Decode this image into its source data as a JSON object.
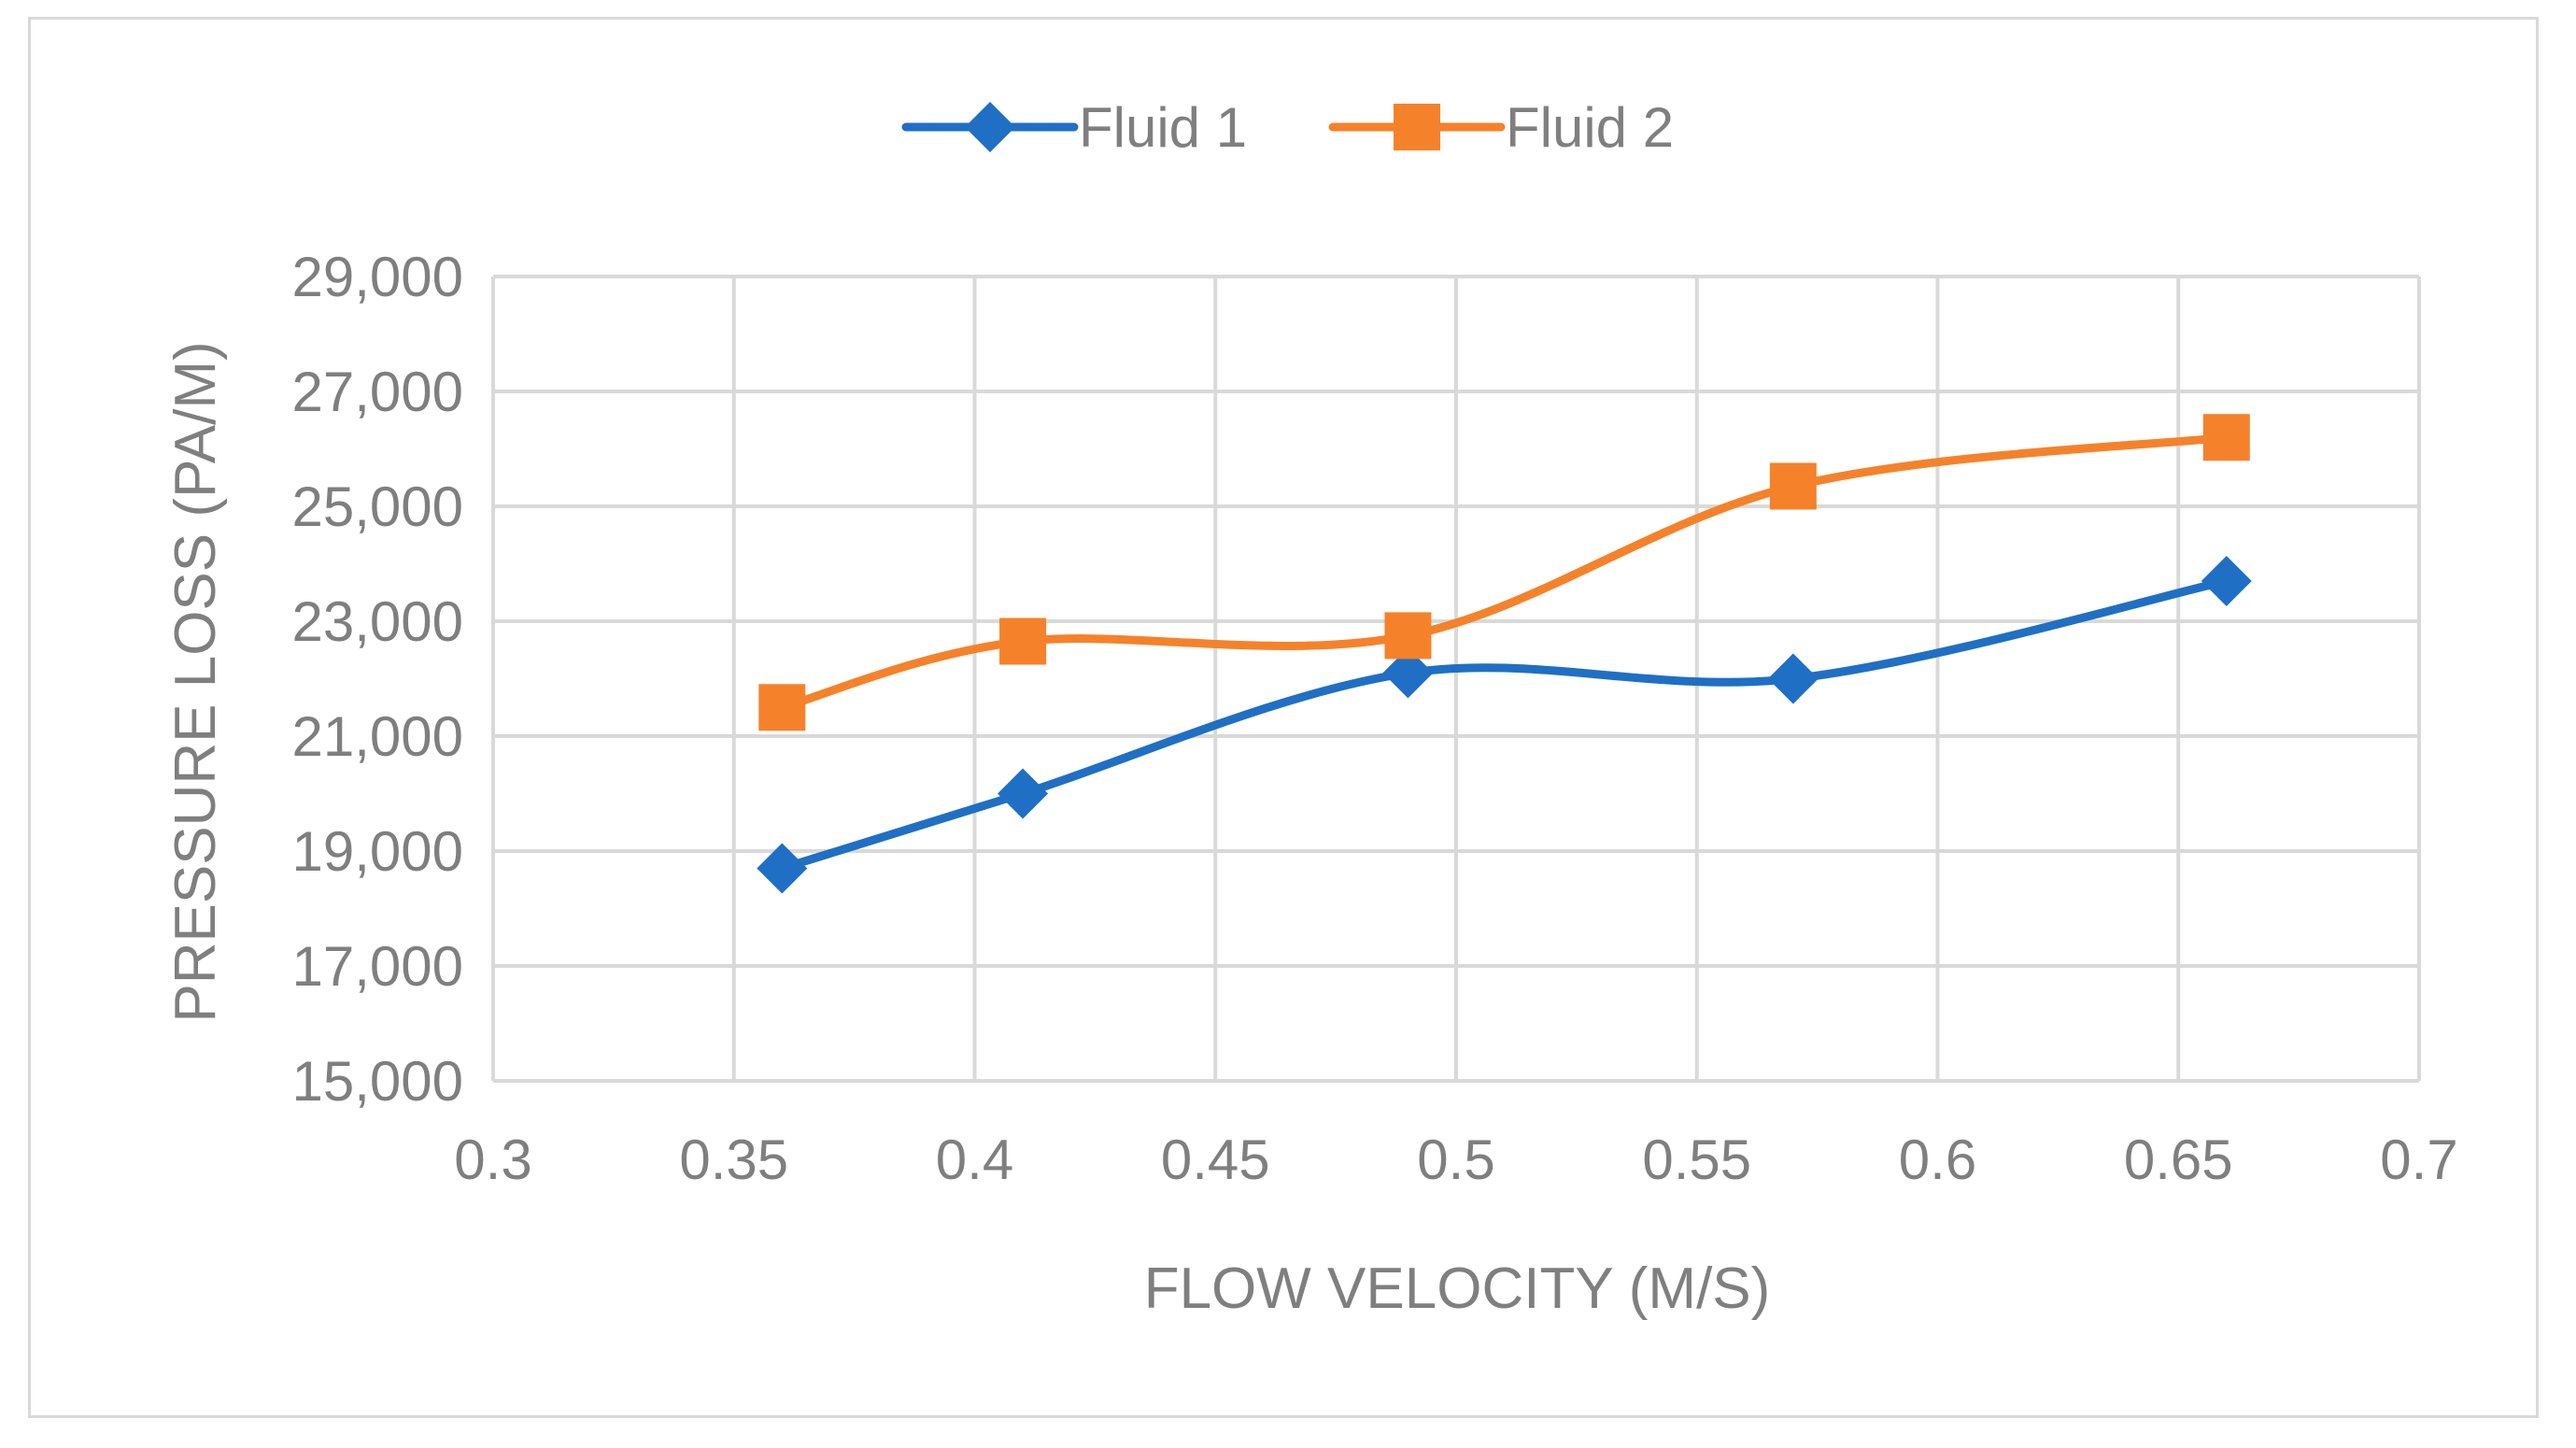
{
  "chart_data": {
    "type": "line",
    "smooth": true,
    "title": "",
    "xlabel": "FLOW VELOCITY (M/S)",
    "ylabel": "PRESSURE LOSS (PA/M)",
    "xlim": [
      0.3,
      0.7
    ],
    "ylim": [
      15000,
      29000
    ],
    "x_ticks": [
      "0.3",
      "0.35",
      "0.4",
      "0.45",
      "0.5",
      "0.55",
      "0.6",
      "0.65",
      "0.7"
    ],
    "x_tick_values": [
      0.3,
      0.35,
      0.4,
      0.45,
      0.5,
      0.55,
      0.6,
      0.65,
      0.7
    ],
    "y_ticks": [
      "15,000",
      "17,000",
      "19,000",
      "21,000",
      "23,000",
      "25,000",
      "27,000",
      "29,000"
    ],
    "y_tick_values": [
      15000,
      17000,
      19000,
      21000,
      23000,
      25000,
      27000,
      29000
    ],
    "grid": true,
    "legend_position": "top-center",
    "series": [
      {
        "name": "Fluid 1",
        "color": "#1f6fc5",
        "marker": "diamond",
        "x": [
          0.36,
          0.41,
          0.49,
          0.57,
          0.66
        ],
        "y": [
          18700,
          20000,
          22100,
          22000,
          23700
        ]
      },
      {
        "name": "Fluid 2",
        "color": "#f5822a",
        "marker": "square",
        "x": [
          0.36,
          0.41,
          0.49,
          0.57,
          0.66
        ],
        "y": [
          21500,
          22650,
          22750,
          25350,
          26200
        ]
      }
    ]
  }
}
